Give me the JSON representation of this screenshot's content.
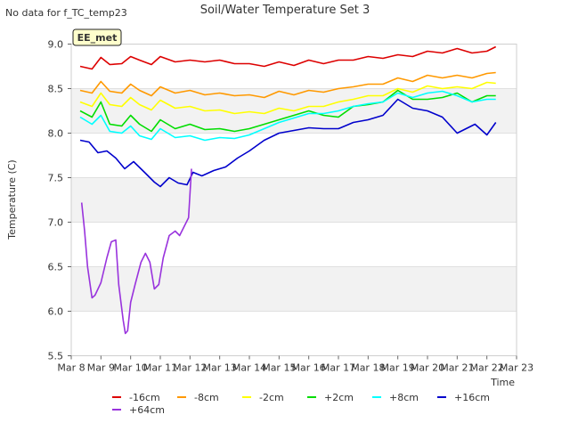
{
  "chart_data": {
    "type": "line",
    "title": "Soil/Water Temperature Set 3",
    "no_data_note": "No data for f_TC_temp23",
    "badge": "EE_met",
    "xlabel": "Time",
    "ylabel": "Temperature (C)",
    "xlim": [
      8,
      23
    ],
    "ylim": [
      5.5,
      9.0
    ],
    "x_ticks": [
      8,
      9,
      10,
      11,
      12,
      13,
      14,
      15,
      16,
      17,
      18,
      19,
      20,
      21,
      22,
      23
    ],
    "x_tick_labels": [
      "Mar 8",
      "Mar 9",
      "Mar 10",
      "Mar 11",
      "Mar 12",
      "Mar 13",
      "Mar 14",
      "Mar 15",
      "Mar 16",
      "Mar 17",
      "Mar 18",
      "Mar 19",
      "Mar 20",
      "Mar 21",
      "Mar 22",
      "Mar 23"
    ],
    "y_ticks": [
      5.5,
      6.0,
      6.5,
      7.0,
      7.5,
      8.0,
      8.5,
      9.0
    ],
    "y_tick_labels": [
      "5.5",
      "6.0",
      "6.5",
      "7.0",
      "7.5",
      "8.0",
      "8.5",
      "9.0"
    ],
    "grid_bands": [
      [
        6.0,
        6.5
      ],
      [
        7.0,
        7.5
      ],
      [
        8.0,
        8.5
      ]
    ],
    "legend_position": "bottom",
    "series": [
      {
        "name": "-16cm",
        "color": "#dd0000",
        "x": [
          8.3,
          8.7,
          9.0,
          9.3,
          9.7,
          10.0,
          10.3,
          10.7,
          11.0,
          11.5,
          12.0,
          12.5,
          13.0,
          13.5,
          14.0,
          14.5,
          15.0,
          15.5,
          16.0,
          16.5,
          17.0,
          17.5,
          18.0,
          18.5,
          19.0,
          19.5,
          20.0,
          20.5,
          21.0,
          21.5,
          22.0,
          22.3
        ],
        "y": [
          8.75,
          8.72,
          8.85,
          8.77,
          8.78,
          8.86,
          8.82,
          8.77,
          8.86,
          8.8,
          8.82,
          8.8,
          8.82,
          8.78,
          8.78,
          8.75,
          8.8,
          8.76,
          8.82,
          8.78,
          8.82,
          8.82,
          8.86,
          8.84,
          8.88,
          8.86,
          8.92,
          8.9,
          8.95,
          8.9,
          8.92,
          8.97
        ]
      },
      {
        "name": "-8cm",
        "color": "#ff9900",
        "x": [
          8.3,
          8.7,
          9.0,
          9.3,
          9.7,
          10.0,
          10.3,
          10.7,
          11.0,
          11.5,
          12.0,
          12.5,
          13.0,
          13.5,
          14.0,
          14.5,
          15.0,
          15.5,
          16.0,
          16.5,
          17.0,
          17.5,
          18.0,
          18.5,
          19.0,
          19.5,
          20.0,
          20.5,
          21.0,
          21.5,
          22.0,
          22.3
        ],
        "y": [
          8.48,
          8.45,
          8.58,
          8.47,
          8.45,
          8.55,
          8.48,
          8.42,
          8.52,
          8.45,
          8.48,
          8.43,
          8.45,
          8.42,
          8.43,
          8.4,
          8.47,
          8.43,
          8.48,
          8.46,
          8.5,
          8.52,
          8.55,
          8.55,
          8.62,
          8.58,
          8.65,
          8.62,
          8.65,
          8.62,
          8.67,
          8.68
        ]
      },
      {
        "name": "-2cm",
        "color": "#ffff00",
        "x": [
          8.3,
          8.7,
          9.0,
          9.3,
          9.7,
          10.0,
          10.3,
          10.7,
          11.0,
          11.5,
          12.0,
          12.5,
          13.0,
          13.5,
          14.0,
          14.5,
          15.0,
          15.5,
          16.0,
          16.5,
          17.0,
          17.5,
          18.0,
          18.5,
          19.0,
          19.5,
          20.0,
          20.5,
          21.0,
          21.5,
          22.0,
          22.3
        ],
        "y": [
          8.35,
          8.3,
          8.45,
          8.32,
          8.3,
          8.4,
          8.32,
          8.26,
          8.37,
          8.28,
          8.3,
          8.25,
          8.26,
          8.22,
          8.24,
          8.22,
          8.28,
          8.25,
          8.3,
          8.3,
          8.35,
          8.38,
          8.42,
          8.42,
          8.5,
          8.46,
          8.53,
          8.5,
          8.52,
          8.5,
          8.57,
          8.56
        ]
      },
      {
        "name": "+2cm",
        "color": "#00dd00",
        "x": [
          8.3,
          8.7,
          9.0,
          9.3,
          9.7,
          10.0,
          10.3,
          10.7,
          11.0,
          11.5,
          12.0,
          12.5,
          13.0,
          13.5,
          14.0,
          14.5,
          15.0,
          15.5,
          16.0,
          16.5,
          17.0,
          17.5,
          18.0,
          18.5,
          19.0,
          19.5,
          20.0,
          20.5,
          21.0,
          21.5,
          22.0,
          22.3
        ],
        "y": [
          8.25,
          8.18,
          8.35,
          8.1,
          8.08,
          8.2,
          8.1,
          8.02,
          8.15,
          8.05,
          8.1,
          8.04,
          8.05,
          8.02,
          8.05,
          8.1,
          8.15,
          8.2,
          8.25,
          8.2,
          8.18,
          8.3,
          8.32,
          8.35,
          8.48,
          8.38,
          8.38,
          8.4,
          8.45,
          8.35,
          8.42,
          8.42
        ]
      },
      {
        "name": "+8cm",
        "color": "#00ffff",
        "x": [
          8.3,
          8.7,
          9.0,
          9.3,
          9.7,
          10.0,
          10.3,
          10.7,
          11.0,
          11.5,
          12.0,
          12.5,
          13.0,
          13.5,
          14.0,
          14.5,
          15.0,
          15.5,
          16.0,
          16.5,
          17.0,
          17.5,
          18.0,
          18.5,
          19.0,
          19.5,
          20.0,
          20.5,
          21.0,
          21.5,
          22.0,
          22.3
        ],
        "y": [
          8.18,
          8.1,
          8.2,
          8.02,
          8.0,
          8.08,
          7.97,
          7.93,
          8.05,
          7.95,
          7.97,
          7.92,
          7.95,
          7.94,
          7.98,
          8.05,
          8.12,
          8.17,
          8.22,
          8.22,
          8.25,
          8.3,
          8.33,
          8.35,
          8.45,
          8.4,
          8.45,
          8.47,
          8.42,
          8.35,
          8.38,
          8.38
        ]
      },
      {
        "name": "+16cm",
        "color": "#0000cc",
        "x": [
          8.3,
          8.6,
          8.9,
          9.2,
          9.5,
          9.8,
          10.1,
          10.5,
          10.8,
          11.0,
          11.3,
          11.6,
          11.9,
          12.1,
          12.4,
          12.8,
          13.2,
          13.6,
          14.0,
          14.5,
          15.0,
          15.5,
          16.0,
          16.5,
          17.0,
          17.5,
          18.0,
          18.5,
          19.0,
          19.5,
          20.0,
          20.5,
          21.0,
          21.3,
          21.6,
          22.0,
          22.3
        ],
        "y": [
          7.92,
          7.9,
          7.78,
          7.8,
          7.72,
          7.6,
          7.68,
          7.55,
          7.45,
          7.4,
          7.5,
          7.44,
          7.42,
          7.56,
          7.52,
          7.58,
          7.62,
          7.72,
          7.8,
          7.92,
          8.0,
          8.03,
          8.06,
          8.05,
          8.05,
          8.12,
          8.15,
          8.2,
          8.38,
          8.28,
          8.25,
          8.18,
          8.0,
          8.05,
          8.1,
          7.98,
          8.12
        ]
      },
      {
        "name": "+64cm",
        "color": "#9933dd",
        "x": [
          8.35,
          8.45,
          8.55,
          8.7,
          8.8,
          9.0,
          9.2,
          9.35,
          9.5,
          9.6,
          9.75,
          9.82,
          9.9,
          10.0,
          10.15,
          10.35,
          10.5,
          10.65,
          10.8,
          10.95,
          11.1,
          11.3,
          11.5,
          11.65,
          11.8,
          11.95,
          12.05
        ],
        "y": [
          7.22,
          6.9,
          6.5,
          6.15,
          6.18,
          6.32,
          6.6,
          6.78,
          6.8,
          6.3,
          5.9,
          5.75,
          5.78,
          6.1,
          6.3,
          6.55,
          6.65,
          6.55,
          6.25,
          6.3,
          6.6,
          6.85,
          6.9,
          6.85,
          6.95,
          7.05,
          7.6
        ]
      }
    ]
  }
}
